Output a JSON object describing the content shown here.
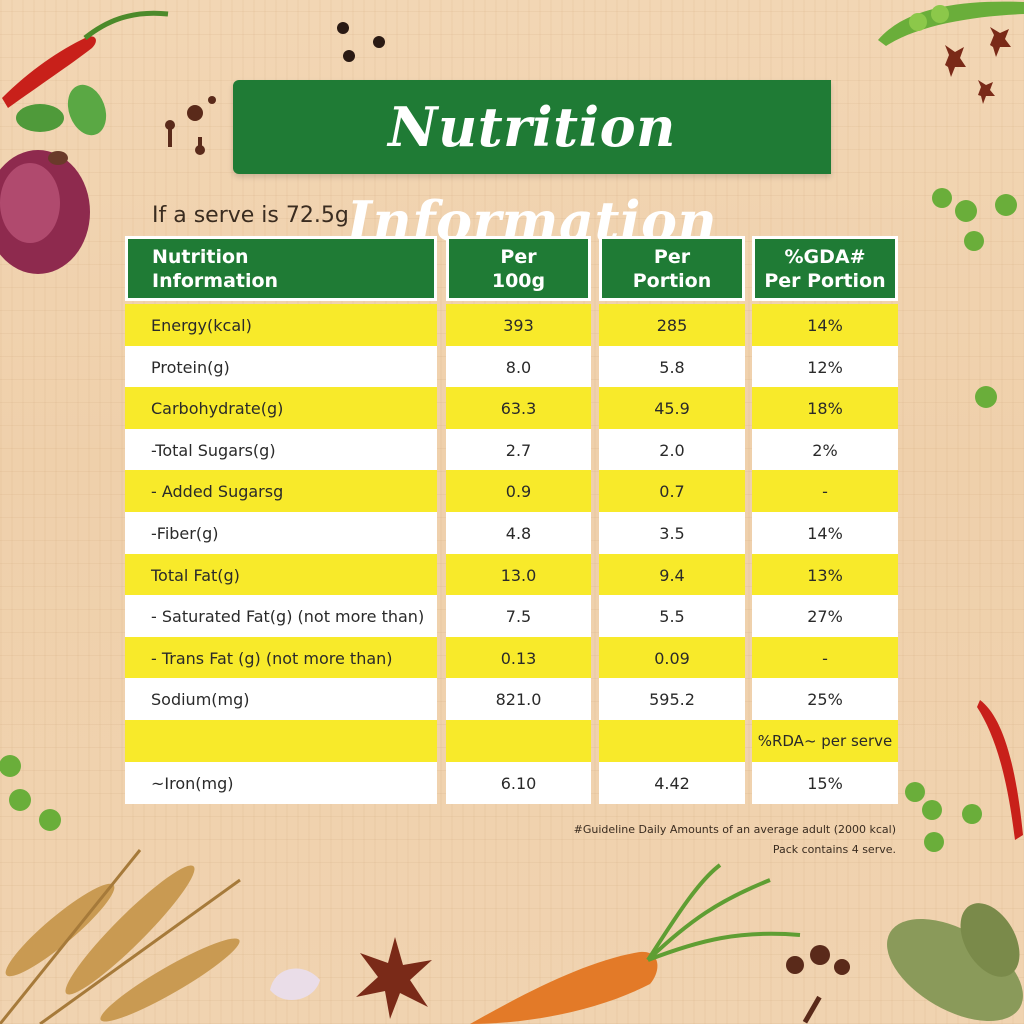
{
  "title": "Nutrition Information",
  "serve_note": "If a serve is 72.5g",
  "table": {
    "headers": [
      "Nutrition\nInformation",
      "Per\n100g",
      "Per\nPortion",
      "%GDA#\nPer Portion"
    ],
    "rows": [
      {
        "name": "Energy(kcal)",
        "per100": "393",
        "portion": "285",
        "gda": "14%"
      },
      {
        "name": "Protein(g)",
        "per100": "8.0",
        "portion": "5.8",
        "gda": "12%"
      },
      {
        "name": "Carbohydrate(g)",
        "per100": "63.3",
        "portion": "45.9",
        "gda": "18%"
      },
      {
        "name": "-Total Sugars(g)",
        "per100": "2.7",
        "portion": "2.0",
        "gda": "2%"
      },
      {
        "name": "- Added Sugarsg",
        "per100": "0.9",
        "portion": "0.7",
        "gda": "-"
      },
      {
        "name": "-Fiber(g)",
        "per100": "4.8",
        "portion": "3.5",
        "gda": "14%"
      },
      {
        "name": "Total Fat(g)",
        "per100": "13.0",
        "portion": "9.4",
        "gda": "13%"
      },
      {
        "name": "- Saturated Fat(g) (not more than)",
        "per100": "7.5",
        "portion": "5.5",
        "gda": "27%"
      },
      {
        "name": "- Trans Fat (g) (not more than)",
        "per100": "0.13",
        "portion": "0.09",
        "gda": "-"
      },
      {
        "name": "Sodium(mg)",
        "per100": "821.0",
        "portion": "595.2",
        "gda": "25%"
      },
      {
        "name": "",
        "per100": "",
        "portion": "",
        "gda": "%RDA~ per serve"
      },
      {
        "name": "~Iron(mg)",
        "per100": "6.10",
        "portion": "4.42",
        "gda": "15%"
      }
    ]
  },
  "footnotes": [
    "#Guideline Daily Amounts of an average adult (2000 kcal)",
    "Pack contains 4 serve."
  ],
  "colors": {
    "brand_green": "#1f7b35",
    "row_yellow": "#f8ea2a",
    "row_white": "#ffffff"
  }
}
